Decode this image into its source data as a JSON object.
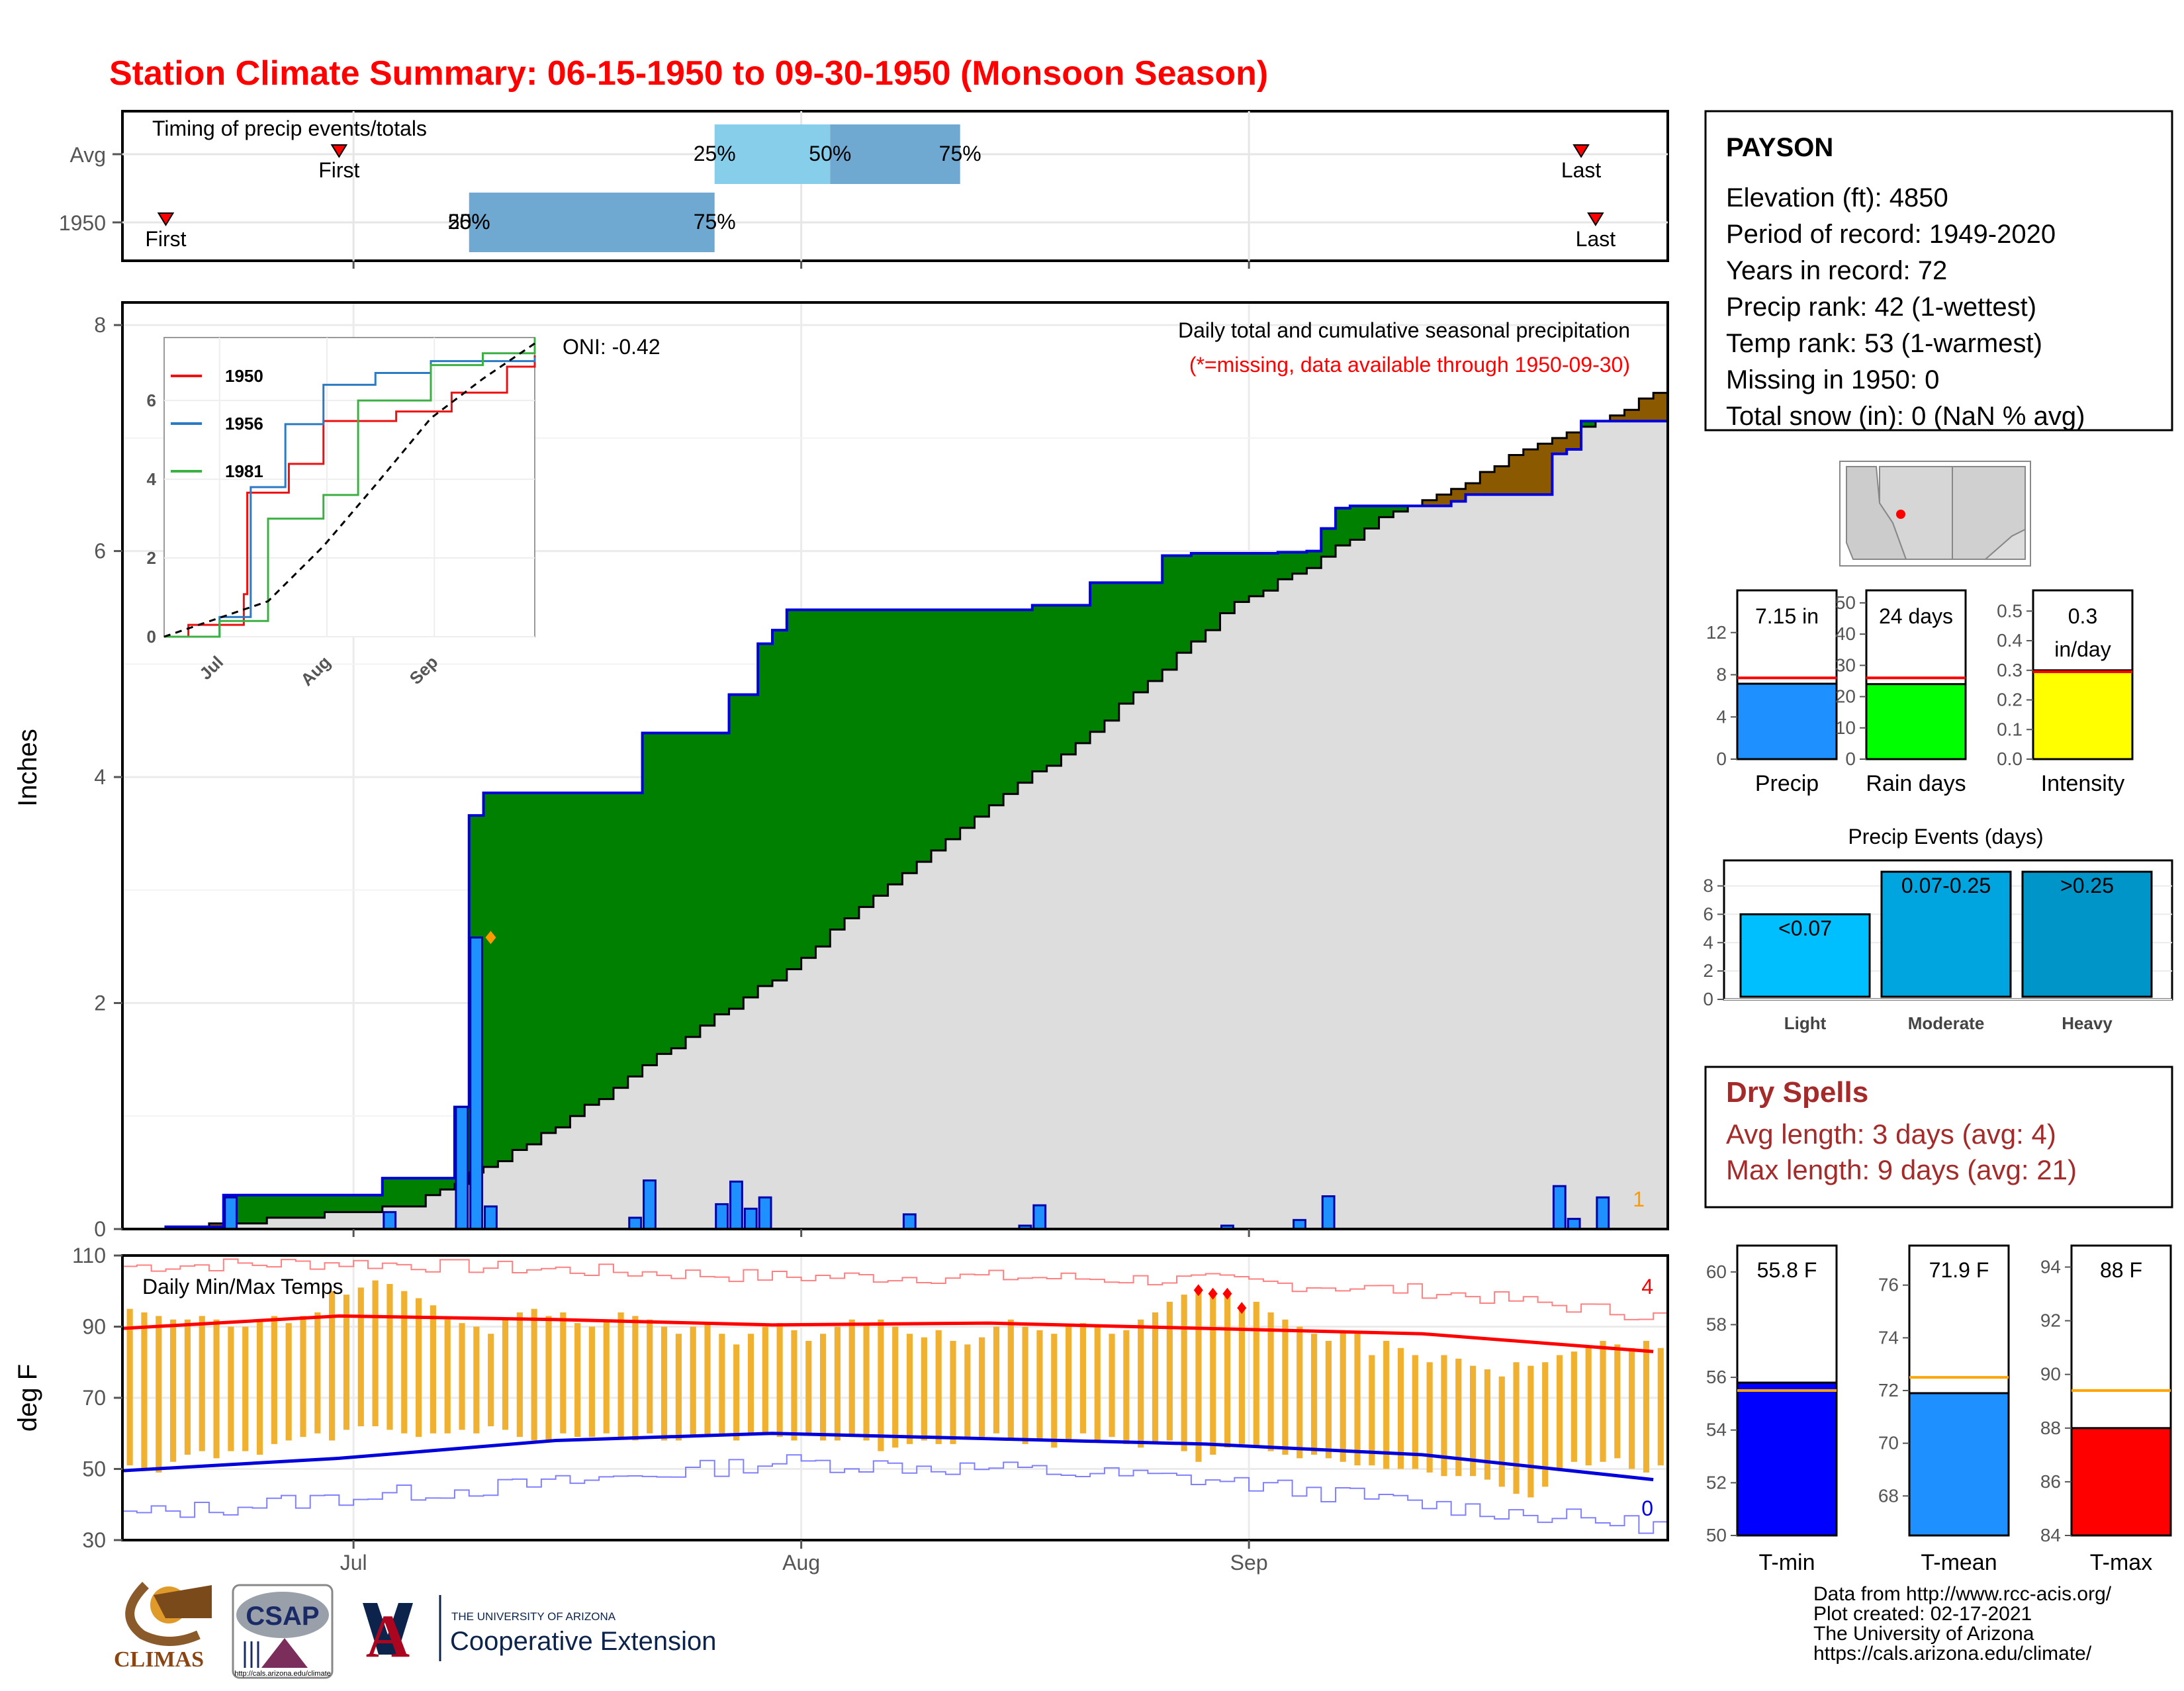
{
  "title": "Station Climate Summary: 06-15-1950 to 09-30-1950 (Monsoon Season)",
  "colors": {
    "precip_green": "#008000",
    "precip_brown": "#8b5a00",
    "cum_gray": "#dddddd",
    "bar_blue": "#1e90ff",
    "temp_bar": "#f0b030",
    "tmax_line": "#ff0000",
    "tmin_line": "#0000dd",
    "title_red": "#ff0000",
    "dry_spell": "#a52a2a"
  },
  "timing": {
    "label": "Timing of precip events/totals",
    "row_labels": [
      "Avg",
      "1950"
    ],
    "avg": {
      "first_label": "First",
      "last_label": "Last",
      "q25_label": "25%",
      "q50_label": "50%",
      "q75_label": "75%"
    },
    "y1950": {
      "first_label": "First",
      "last_label": "Last",
      "q25_label": "25%",
      "q50_label": "50%",
      "q75_label": "75%"
    }
  },
  "precip_panel": {
    "ylabel": "Inches",
    "y_ticks": [
      "0",
      "2",
      "4",
      "6",
      "8"
    ],
    "oni_label": "ONI: -0.42",
    "caption": "Daily total and cumulative seasonal precipitation",
    "missing_note": "(*=missing, data available through 1950-09-30)",
    "corner_count": "1"
  },
  "inset": {
    "y_ticks": [
      "0",
      "2",
      "4",
      "6"
    ],
    "x_ticks": [
      "Jul",
      "Aug",
      "Sep"
    ],
    "legend": [
      "1950",
      "1956",
      "1981"
    ],
    "series_colors": [
      "#ee1111",
      "#2b7bc4",
      "#3cb043"
    ]
  },
  "temp_panel": {
    "ylabel": "deg F",
    "label": "Daily Min/Max Temps",
    "y_ticks": [
      "30",
      "50",
      "70",
      "90",
      "110"
    ],
    "count_high": "4",
    "count_low": "0"
  },
  "x_axis": {
    "ticks": [
      "Jul",
      "Aug",
      "Sep"
    ]
  },
  "station": {
    "name": "PAYSON",
    "lines": [
      "Elevation (ft): 4850",
      "Period of record: 1949-2020",
      "Years in record: 72",
      "Precip rank: 42 (1-wettest)",
      "Temp rank: 53 (1-warmest)",
      "Missing in 1950: 0",
      "Total snow (in): 0 (NaN % avg)"
    ]
  },
  "summary_bars": {
    "precip": {
      "label": "Precip",
      "value_label": "7.15 in",
      "value": 7.15,
      "avg": 7.7,
      "ymax": 16,
      "ticks": [
        "0",
        "4",
        "8",
        "12"
      ]
    },
    "rain_days": {
      "label": "Rain days",
      "value_label": "24 days",
      "value": 24,
      "avg": 26,
      "ymax": 54,
      "ticks": [
        "0",
        "10",
        "20",
        "30",
        "40",
        "50"
      ]
    },
    "intensity": {
      "label": "Intensity",
      "value_label": "0.3",
      "value_label2": "in/day",
      "value": 0.3,
      "avg": 0.295,
      "ymax": 0.57,
      "ticks": [
        "0.0",
        "0.1",
        "0.2",
        "0.3",
        "0.4",
        "0.5"
      ]
    }
  },
  "precip_events": {
    "title": "Precip Events (days)",
    "ticks": [
      "0",
      "2",
      "4",
      "6",
      "8"
    ],
    "categories": [
      "Light",
      "Moderate",
      "Heavy"
    ],
    "value_labels": [
      "<0.07",
      "0.07-0.25",
      ">0.25"
    ],
    "values": [
      6,
      9,
      9
    ],
    "colors": [
      "#00bfff",
      "#00a5e0",
      "#0095c8"
    ]
  },
  "dry_spells": {
    "title": "Dry Spells",
    "avg_line": "Avg length: 3 days (avg: 4)",
    "max_line": "Max length: 9 days (avg: 21)"
  },
  "temp_bars": {
    "tmin": {
      "label": "T-min",
      "value_label": "55.8 F",
      "value": 55.8,
      "avg": 55.5,
      "ymin": 50,
      "ymax": 61,
      "ticks": [
        "50",
        "52",
        "54",
        "56",
        "58",
        "60"
      ],
      "color": "#0000ff"
    },
    "tmean": {
      "label": "T-mean",
      "value_label": "71.9 F",
      "value": 71.9,
      "avg": 72.5,
      "ymin": 66.5,
      "ymax": 77.5,
      "ticks": [
        "68",
        "70",
        "72",
        "74",
        "76"
      ],
      "color": "#1e90ff"
    },
    "tmax": {
      "label": "T-max",
      "value_label": "88 F",
      "value": 88,
      "avg": 89.4,
      "ymin": 84,
      "ymax": 94.8,
      "ticks": [
        "84",
        "86",
        "88",
        "90",
        "92",
        "94"
      ],
      "color": "#ff0000"
    }
  },
  "footer": {
    "lines": [
      "Data from http://www.rcc-acis.org/",
      "Plot created: 02-17-2021",
      "The University of Arizona",
      "https://cals.arizona.edu/climate/"
    ],
    "logos": {
      "climas": "CLIMAS",
      "csap": "CSAP",
      "csap_url": "http://cals.arizona.edu/climate",
      "ua_small": "THE UNIVERSITY OF ARIZONA",
      "ua_big": "Cooperative Extension"
    }
  },
  "chart_data": [
    {
      "type": "bar",
      "title": "Timing of precip events/totals",
      "rows": [
        "Avg",
        "1950"
      ],
      "avg": {
        "first": "06-30",
        "q25": "07-26",
        "q50": "08-03",
        "q75": "08-12",
        "last": "09-24"
      },
      "y1950": {
        "first": "06-18",
        "q25": "07-09",
        "q50": "07-09",
        "q75": "07-26",
        "last": "09-25"
      }
    },
    {
      "type": "area",
      "title": "Daily total and cumulative seasonal precipitation",
      "ylabel": "Inches",
      "ylim": [
        0,
        8.2
      ],
      "x_start": "06-15",
      "x_end": "09-30",
      "cum_1950": [
        [
          "06-15",
          0
        ],
        [
          "06-18",
          0.02
        ],
        [
          "06-22",
          0.3
        ],
        [
          "07-01",
          0.3
        ],
        [
          "07-03",
          0.45
        ],
        [
          "07-08",
          1.08
        ],
        [
          "07-09",
          3.66
        ],
        [
          "07-10",
          3.86
        ],
        [
          "07-21",
          4.39
        ],
        [
          "07-27",
          4.73
        ],
        [
          "07-29",
          5.18
        ],
        [
          "07-30",
          5.3
        ],
        [
          "07-31",
          5.48
        ],
        [
          "08-17",
          5.52
        ],
        [
          "08-21",
          5.72
        ],
        [
          "08-26",
          5.96
        ],
        [
          "08-28",
          5.98
        ],
        [
          "09-03",
          5.99
        ],
        [
          "09-05",
          6.0
        ],
        [
          "09-06",
          6.2
        ],
        [
          "09-07",
          6.38
        ],
        [
          "09-08",
          6.4
        ],
        [
          "09-15",
          6.44
        ],
        [
          "09-16",
          6.5
        ],
        [
          "09-22",
          6.86
        ],
        [
          "09-23",
          6.9
        ],
        [
          "09-24",
          7.15
        ],
        [
          "09-30",
          7.15
        ]
      ],
      "cum_avg": [
        [
          "06-15",
          0
        ],
        [
          "06-20",
          0.02
        ],
        [
          "06-25",
          0.08
        ],
        [
          "07-01",
          0.15
        ],
        [
          "07-05",
          0.22
        ],
        [
          "07-10",
          0.55
        ],
        [
          "07-15",
          0.9
        ],
        [
          "07-20",
          1.35
        ],
        [
          "07-25",
          1.8
        ],
        [
          "07-31",
          2.3
        ],
        [
          "08-05",
          2.85
        ],
        [
          "08-10",
          3.35
        ],
        [
          "08-15",
          3.85
        ],
        [
          "08-20",
          4.3
        ],
        [
          "08-25",
          4.85
        ],
        [
          "08-31",
          5.55
        ],
        [
          "09-05",
          5.85
        ],
        [
          "09-10",
          6.3
        ],
        [
          "09-15",
          6.55
        ],
        [
          "09-20",
          6.9
        ],
        [
          "09-25",
          7.15
        ],
        [
          "09-30",
          7.45
        ]
      ],
      "daily_precip": [
        [
          "06-22",
          0.28
        ],
        [
          "07-03",
          0.15
        ],
        [
          "07-08",
          1.08
        ],
        [
          "07-09",
          2.58
        ],
        [
          "07-10",
          0.2
        ],
        [
          "07-20",
          0.1
        ],
        [
          "07-21",
          0.43
        ],
        [
          "07-26",
          0.22
        ],
        [
          "07-27",
          0.42
        ],
        [
          "07-28",
          0.18
        ],
        [
          "07-29",
          0.28
        ],
        [
          "08-08",
          0.13
        ],
        [
          "08-16",
          0.03
        ],
        [
          "08-17",
          0.21
        ],
        [
          "08-30",
          0.03
        ],
        [
          "09-04",
          0.08
        ],
        [
          "09-06",
          0.29
        ],
        [
          "09-22",
          0.38
        ],
        [
          "09-23",
          0.09
        ],
        [
          "09-25",
          0.28
        ]
      ]
    },
    {
      "type": "line",
      "title": "",
      "series": [
        {
          "name": "1950",
          "points": [
            [
              "06-15",
              0
            ],
            [
              "06-22",
              0.3
            ],
            [
              "07-08",
              1.08
            ],
            [
              "07-09",
              3.66
            ],
            [
              "07-21",
              4.39
            ],
            [
              "07-31",
              5.48
            ],
            [
              "08-21",
              5.72
            ],
            [
              "09-06",
              6.2
            ],
            [
              "09-22",
              6.86
            ],
            [
              "09-30",
              7.15
            ]
          ]
        },
        {
          "name": "1956",
          "points": [
            [
              "06-15",
              0
            ],
            [
              "07-01",
              0.5
            ],
            [
              "07-10",
              3.8
            ],
            [
              "07-20",
              5.4
            ],
            [
              "07-31",
              6.4
            ],
            [
              "08-15",
              6.7
            ],
            [
              "08-31",
              7.0
            ],
            [
              "09-30",
              7.1
            ]
          ]
        },
        {
          "name": "1981",
          "points": [
            [
              "06-15",
              0
            ],
            [
              "07-01",
              0.4
            ],
            [
              "07-15",
              3.0
            ],
            [
              "07-31",
              3.6
            ],
            [
              "08-10",
              6.0
            ],
            [
              "08-31",
              6.9
            ],
            [
              "09-15",
              7.2
            ],
            [
              "09-30",
              7.6
            ]
          ]
        }
      ],
      "average": [
        [
          "06-15",
          0
        ],
        [
          "07-15",
          0.9
        ],
        [
          "07-31",
          2.3
        ],
        [
          "08-15",
          3.85
        ],
        [
          "08-31",
          5.55
        ],
        [
          "09-15",
          6.55
        ],
        [
          "09-30",
          7.45
        ]
      ],
      "ylim": [
        0,
        7.6
      ]
    },
    {
      "type": "bar",
      "title": "Daily Min/Max Temps",
      "ylabel": "deg F",
      "ylim": [
        30,
        110
      ],
      "x_start": "06-15",
      "x_end": "09-30",
      "tmax_avg": [
        [
          0,
          89.5
        ],
        [
          15,
          93
        ],
        [
          30,
          92
        ],
        [
          45,
          90.5
        ],
        [
          60,
          91
        ],
        [
          75,
          89.5
        ],
        [
          90,
          88
        ],
        [
          106,
          83
        ]
      ],
      "tmin_avg": [
        [
          0,
          49.5
        ],
        [
          15,
          53
        ],
        [
          30,
          58
        ],
        [
          45,
          60
        ],
        [
          60,
          58.5
        ],
        [
          75,
          57
        ],
        [
          90,
          54
        ],
        [
          106,
          47
        ]
      ],
      "record_high": [
        [
          0,
          107
        ],
        [
          15,
          108
        ],
        [
          30,
          106
        ],
        [
          45,
          104
        ],
        [
          60,
          104
        ],
        [
          75,
          103
        ],
        [
          90,
          100
        ],
        [
          106,
          93
        ]
      ],
      "record_low": [
        [
          0,
          37
        ],
        [
          15,
          42
        ],
        [
          30,
          46
        ],
        [
          45,
          52
        ],
        [
          60,
          50
        ],
        [
          75,
          47
        ],
        [
          90,
          40
        ],
        [
          106,
          34
        ]
      ],
      "tmax_1950": [
        95,
        94,
        93,
        92,
        92,
        93,
        92,
        90,
        90,
        92,
        93,
        91,
        93,
        94,
        100,
        99,
        101,
        103,
        102,
        100,
        98,
        96,
        92,
        91,
        90,
        88,
        92,
        94,
        95,
        93,
        94,
        91,
        90,
        92,
        94,
        93,
        92,
        90,
        88,
        90,
        91,
        88,
        85,
        88,
        90,
        91,
        89,
        86,
        88,
        90,
        92,
        91,
        92,
        90,
        88,
        87,
        89,
        86,
        85,
        87,
        90,
        92,
        90,
        89,
        88,
        90,
        91,
        90,
        88,
        89,
        92,
        94,
        97,
        99,
        101,
        100,
        100,
        96,
        97,
        94,
        92,
        90,
        88,
        86,
        89,
        88,
        82,
        86,
        84,
        82,
        80,
        82,
        81,
        79,
        78,
        76,
        80,
        79,
        80,
        82,
        83,
        84,
        86,
        85,
        84,
        86,
        84
      ],
      "tmin_1950": [
        51,
        50,
        49,
        52,
        54,
        55,
        53,
        55,
        55,
        54,
        57,
        58,
        59,
        60,
        58,
        61,
        62,
        62,
        61,
        60,
        59,
        60,
        60,
        61,
        60,
        62,
        61,
        59,
        58,
        58,
        60,
        59,
        59,
        60,
        59,
        58,
        60,
        58,
        58,
        59,
        59,
        60,
        58,
        60,
        60,
        59,
        58,
        60,
        58,
        58,
        59,
        58,
        55,
        56,
        57,
        58,
        57,
        57,
        59,
        59,
        60,
        58,
        57,
        58,
        56,
        58,
        60,
        58,
        59,
        57,
        56,
        57,
        58,
        55,
        52,
        54,
        56,
        57,
        56,
        55,
        54,
        53,
        54,
        53,
        52,
        51,
        51,
        50,
        50,
        50,
        49,
        48,
        48,
        48,
        47,
        45,
        43,
        42,
        45,
        50,
        52,
        51,
        52,
        53,
        50,
        49,
        51
      ],
      "record_high_days": [
        "08-28",
        "08-29",
        "08-30",
        "08-31"
      ]
    },
    {
      "type": "bar",
      "title": "",
      "categories": [
        "Precip",
        "Rain days",
        "Intensity"
      ],
      "values": [
        7.15,
        24,
        0.3
      ],
      "averages": [
        7.7,
        26,
        0.295
      ]
    },
    {
      "type": "bar",
      "title": "Precip Events (days)",
      "categories": [
        "Light",
        "Moderate",
        "Heavy"
      ],
      "values": [
        6,
        9,
        9
      ]
    },
    {
      "type": "bar",
      "title": "",
      "categories": [
        "T-min",
        "T-mean",
        "T-max"
      ],
      "values": [
        55.8,
        71.9,
        88
      ],
      "averages": [
        55.5,
        72.5,
        89.4
      ]
    }
  ]
}
